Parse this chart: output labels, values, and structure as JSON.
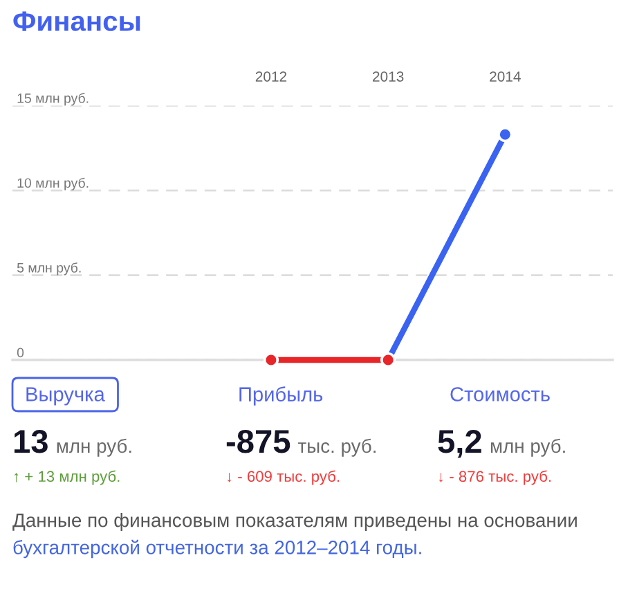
{
  "chart_data": [
    {
      "type": "line",
      "title": "Финансы",
      "categories": [
        "2012",
        "2013",
        "2014"
      ],
      "series": [
        {
          "color": "#e8262a",
          "values": [
            0,
            0,
            null
          ]
        },
        {
          "color": "#3a63f2",
          "values": [
            null,
            0,
            13.3
          ]
        }
      ],
      "ylim": [
        0,
        15
      ],
      "yticks": [
        0,
        {
          "value": 5,
          "label": "5 млн руб."
        },
        {
          "value": 10,
          "label": "10 млн руб."
        },
        {
          "value": 15,
          "label": "15 млн руб."
        }
      ],
      "grid": "y",
      "marker": "circle"
    },
    {
      "type": "other",
      "categories": [
        "Выручка",
        "Прибыль",
        "Стоимость"
      ],
      "colors": [
        "#5e9e3c",
        "#f03c3c",
        "#f03c3c"
      ],
      "annotations": [
        "13",
        "млн руб.",
        "↑ + 13 млн руб.",
        "-875",
        "тыс. руб.",
        "↓ - 609 тыс. руб.",
        "5,2",
        "млн руб.",
        "↓ - 876 тыс. руб.",
        "Данные по финансовым показателям приведены на основании",
        "бухгалтерской отчетности за 2012–2014 годы."
      ]
    }
  ]
}
